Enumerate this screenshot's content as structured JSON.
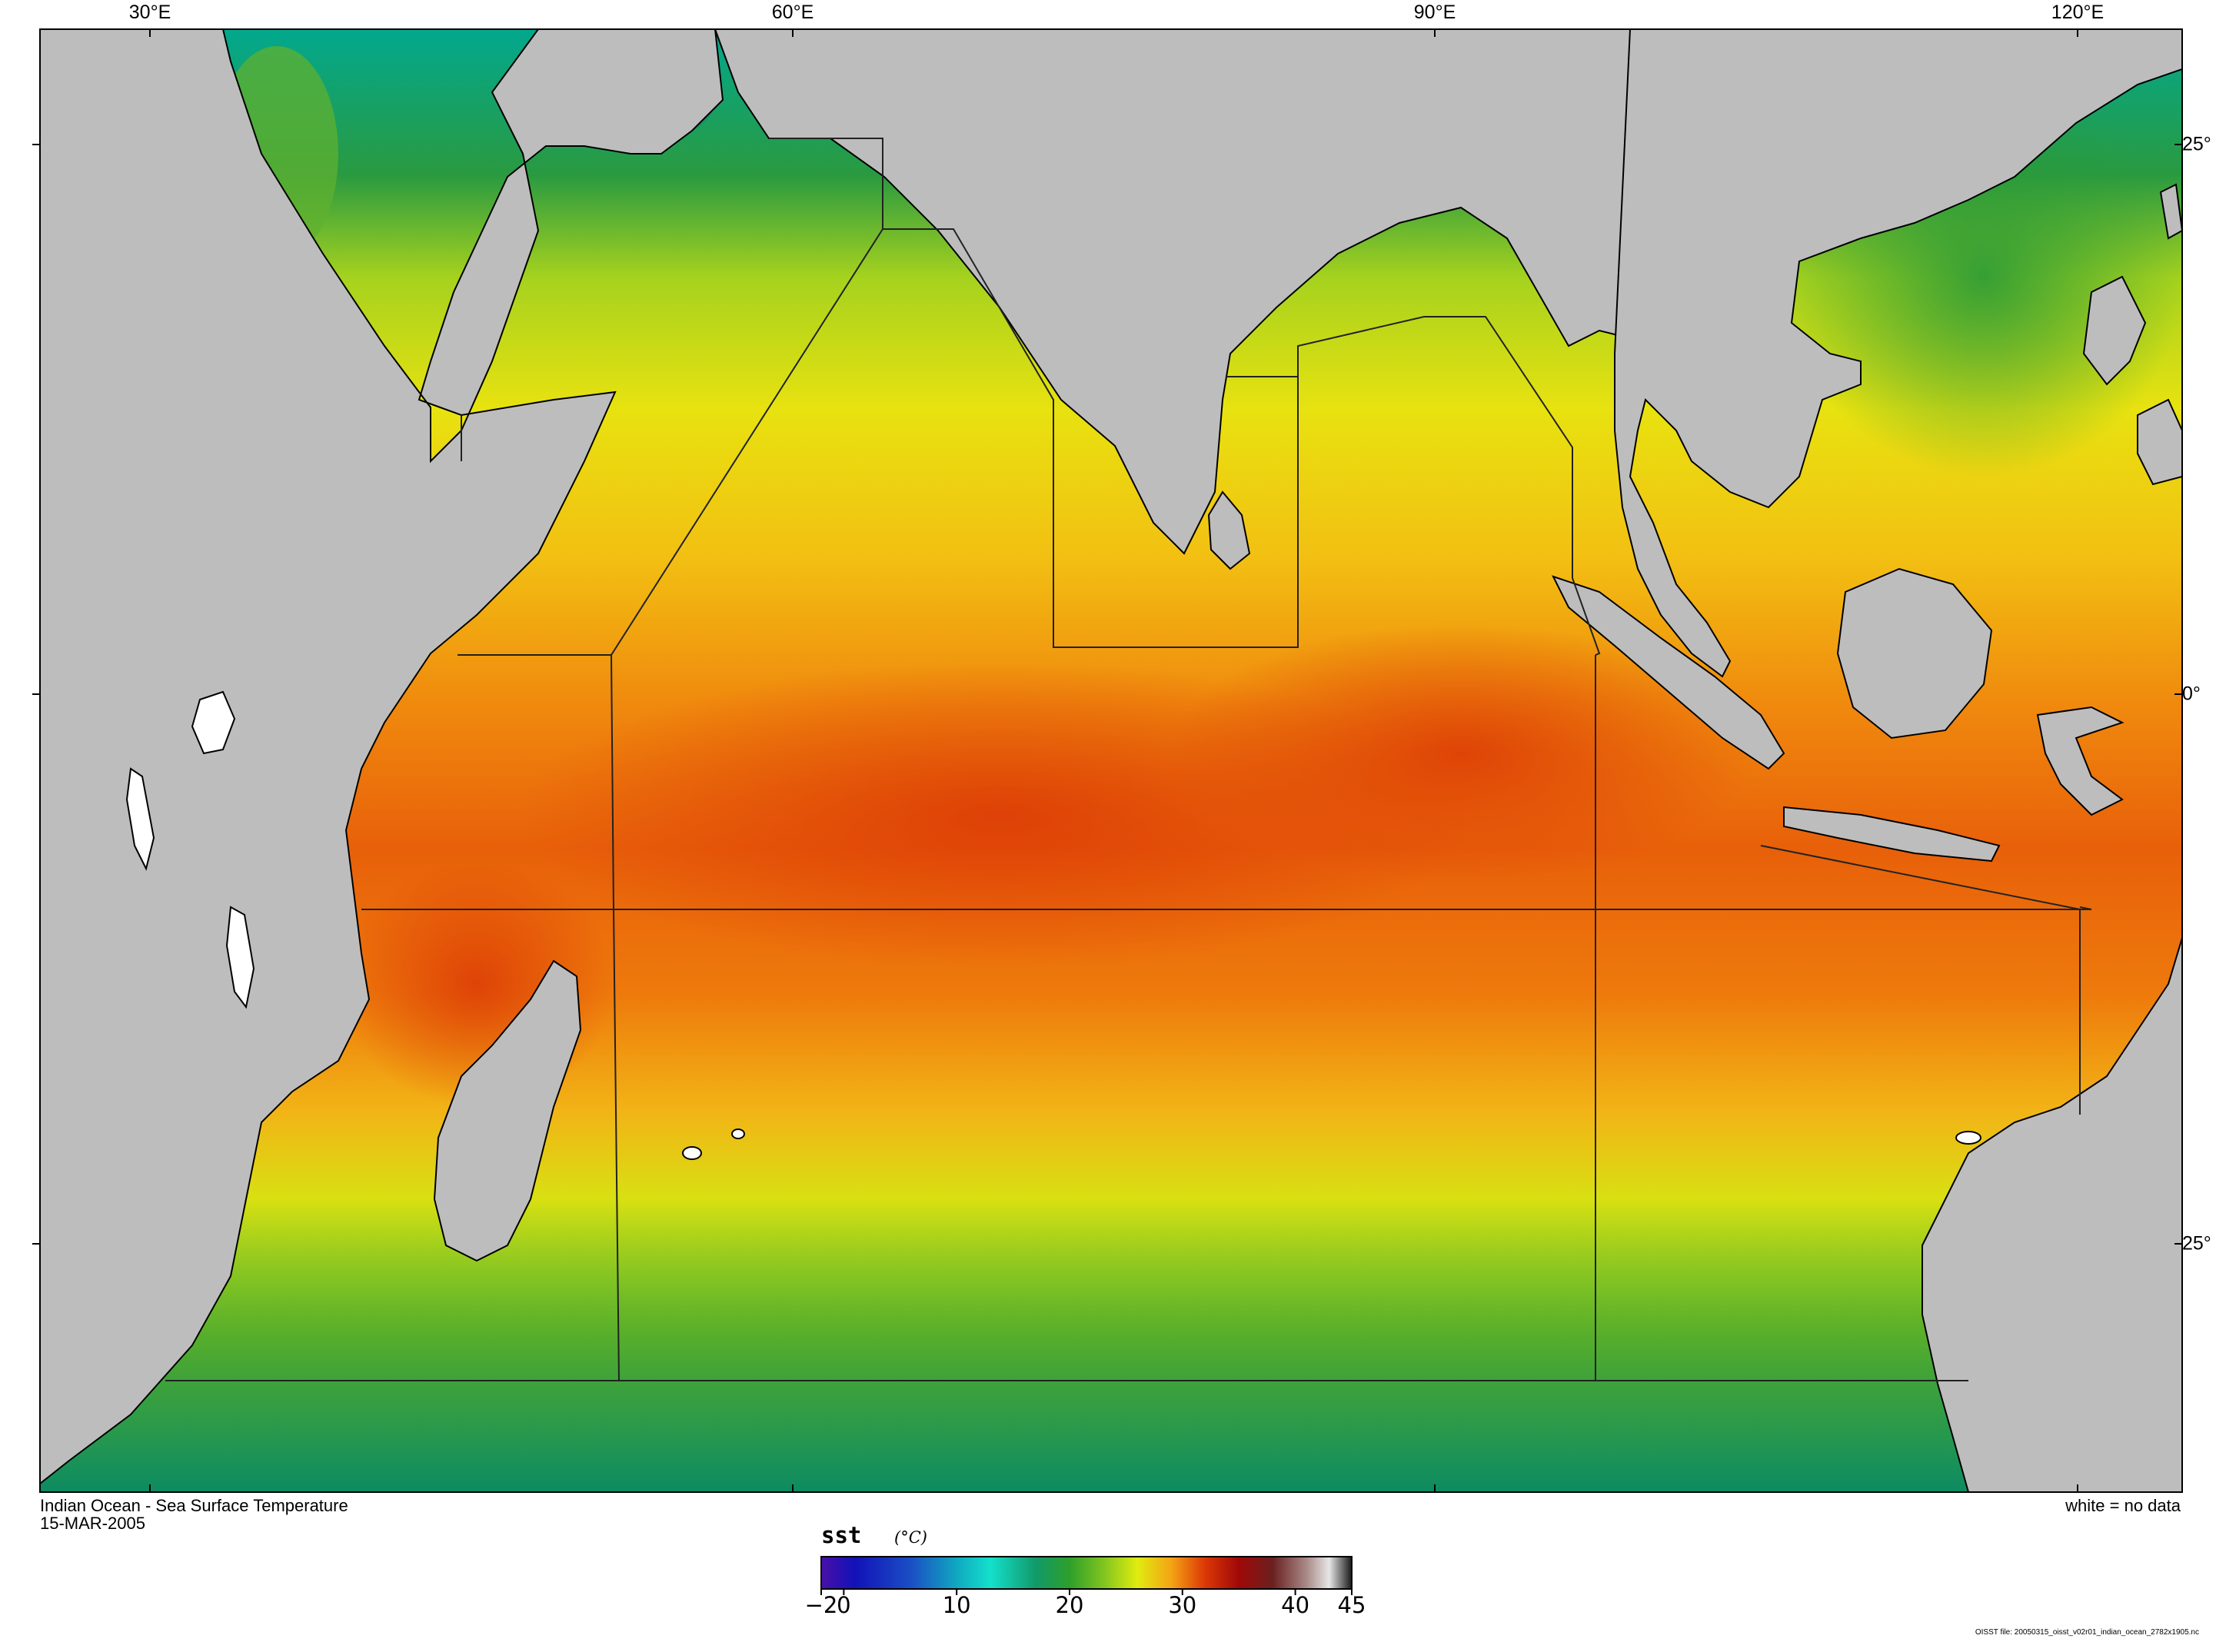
{
  "map": {
    "title": "Indian Ocean - Sea Surface Temperature",
    "date": "15-MAR-2005",
    "no_data_note": "white = no data",
    "source_note": "OISST file: 20050315_oisst_v02r01_indian_ocean_2782x1905.nc",
    "longitude_labels": [
      "30°E",
      "60°E",
      "90°E",
      "120°E"
    ],
    "latitude_labels": [
      "25°",
      "0°",
      "25°"
    ],
    "extent": {
      "lon_min": 26,
      "lon_max": 126,
      "lat_min": -36,
      "lat_max": 31
    },
    "colors": {
      "land": "#bdbdbd",
      "no_data": "#ffffff",
      "coastline": "#000000"
    }
  },
  "colorbar": {
    "variable": "sst",
    "unit": "(°C)",
    "range": [
      -2,
      45
    ],
    "tick_labels": [
      "−2",
      "0",
      "10",
      "20",
      "30",
      "40",
      "45"
    ],
    "tick_values": [
      -2,
      0,
      10,
      20,
      30,
      40,
      45
    ],
    "stops": [
      {
        "value": -2,
        "color": "#4a0fa8"
      },
      {
        "value": 1,
        "color": "#1212b8"
      },
      {
        "value": 6,
        "color": "#1a4fc4"
      },
      {
        "value": 10,
        "color": "#10a8c0"
      },
      {
        "value": 13,
        "color": "#14e0cc"
      },
      {
        "value": 17,
        "color": "#119a6a"
      },
      {
        "value": 20,
        "color": "#2e9f2a"
      },
      {
        "value": 23,
        "color": "#80c420"
      },
      {
        "value": 26,
        "color": "#e0ec10"
      },
      {
        "value": 29,
        "color": "#f4a414"
      },
      {
        "value": 32,
        "color": "#dc3806"
      },
      {
        "value": 35,
        "color": "#a00808"
      },
      {
        "value": 38,
        "color": "#6a2020"
      },
      {
        "value": 41,
        "color": "#a88a88"
      },
      {
        "value": 43,
        "color": "#e6e6e6"
      },
      {
        "value": 45,
        "color": "#181818"
      }
    ]
  }
}
